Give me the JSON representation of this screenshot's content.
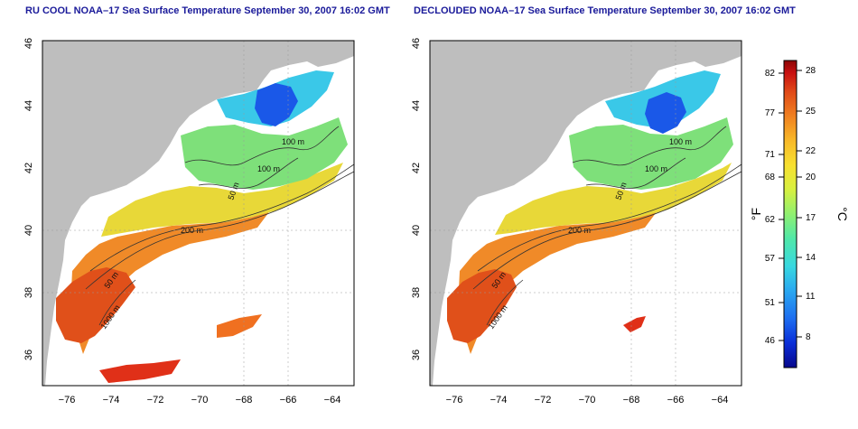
{
  "titles": {
    "left": "RU COOL NOAA–17 Sea Surface Temperature September 30, 2007 16:02 GMT",
    "right": "DECLOUDED NOAA–17 Sea Surface Temperature September 30, 2007 16:02 GMT"
  },
  "axes": {
    "x_ticks": [
      "−76",
      "−74",
      "−72",
      "−70",
      "−68",
      "−66",
      "−64"
    ],
    "y_ticks": [
      "36",
      "38",
      "40",
      "42",
      "44",
      "46"
    ]
  },
  "contour_labels": {
    "left": [
      "100 m",
      "100 m",
      "50 m",
      "200 m",
      "50 m",
      "1000 m"
    ],
    "right": [
      "100 m",
      "100 m",
      "50 m",
      "200 m",
      "50 m",
      "1000 m"
    ]
  },
  "colorbar": {
    "fahrenheit_unit": "°F",
    "celsius_unit": "°C",
    "fahrenheit_ticks": [
      "82",
      "77",
      "71",
      "68",
      "62",
      "57",
      "51",
      "46"
    ],
    "celsius_ticks": [
      "28",
      "25",
      "22",
      "20",
      "17",
      "14",
      "11",
      "8"
    ],
    "colors": [
      "#08088c",
      "#0a2ed8",
      "#1e6ef0",
      "#2aa8f0",
      "#38d8e0",
      "#50e8a8",
      "#90f070",
      "#d8f040",
      "#f8e030",
      "#f8b828",
      "#f08020",
      "#e04818",
      "#c81010",
      "#8c0606"
    ]
  },
  "colors": {
    "land": "#bebebe",
    "ocean": "#ffffff",
    "title": "#1a1a9a"
  }
}
